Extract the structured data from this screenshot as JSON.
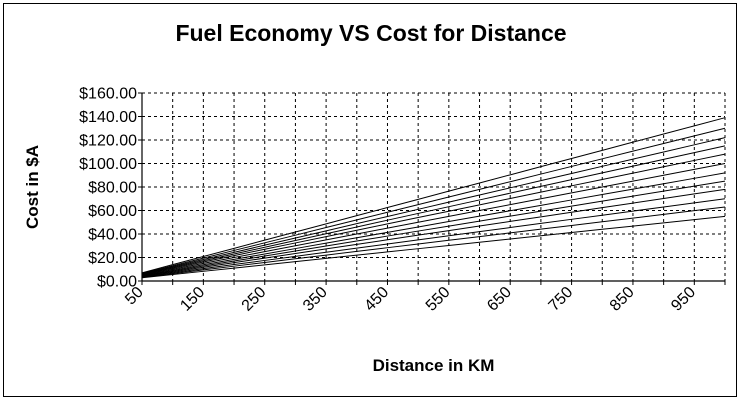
{
  "chart_data": {
    "type": "line",
    "title": "Fuel Economy VS Cost for Distance",
    "xlabel": "Distance in KM",
    "ylabel": "Cost in $A",
    "x": [
      50,
      100,
      150,
      200,
      250,
      300,
      350,
      400,
      450,
      500,
      550,
      600,
      650,
      700,
      750,
      800,
      850,
      900,
      950,
      1000
    ],
    "x_tick_labels": [
      "50",
      "150",
      "250",
      "350",
      "450",
      "550",
      "650",
      "750",
      "850",
      "950"
    ],
    "y_tick_labels": [
      "$0.00",
      "$20.00",
      "$40.00",
      "$60.00",
      "$80.00",
      "$100.00",
      "$120.00",
      "$140.00",
      "$160.00"
    ],
    "y_ticks": [
      0,
      20,
      40,
      60,
      80,
      100,
      120,
      140,
      160
    ],
    "ylim": [
      0,
      160
    ],
    "grid": true,
    "legend": "none",
    "series": [
      {
        "start": 2.75,
        "end": 55
      },
      {
        "start": 3.15,
        "end": 63
      },
      {
        "start": 3.5,
        "end": 70
      },
      {
        "start": 3.9,
        "end": 78
      },
      {
        "start": 4.25,
        "end": 85
      },
      {
        "start": 4.6,
        "end": 92
      },
      {
        "start": 5.0,
        "end": 100
      },
      {
        "start": 5.4,
        "end": 108
      },
      {
        "start": 5.75,
        "end": 115
      },
      {
        "start": 6.1,
        "end": 122
      },
      {
        "start": 6.5,
        "end": 130
      },
      {
        "start": 6.95,
        "end": 139
      }
    ],
    "line_color": "#000000",
    "grid_color": "#000000"
  }
}
